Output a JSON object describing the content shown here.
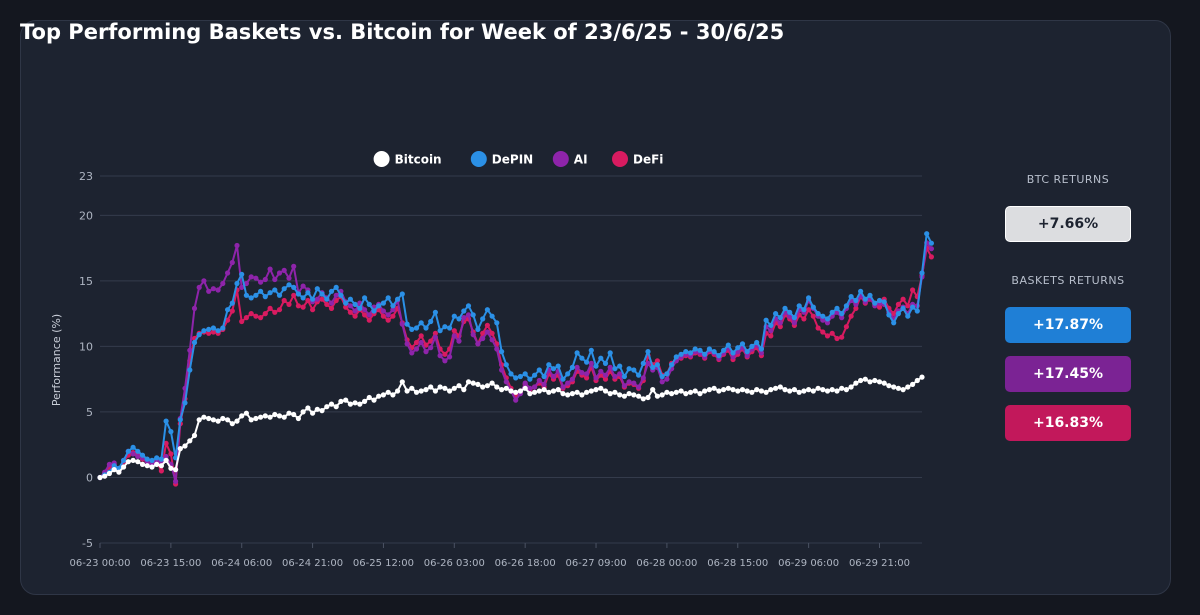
{
  "title": "Top Performing Baskets vs. Bitcoin for Week of 23/6/25 - 30/6/25",
  "side_panel": {
    "btc_heading": "BTC RETURNS",
    "btc_return": "+7.66%",
    "baskets_heading": "BASKETS RETURNS",
    "basket_returns": [
      {
        "series": "DePIN",
        "value": "+17.87%"
      },
      {
        "series": "AI",
        "value": "+17.45%"
      },
      {
        "series": "DeFi",
        "value": "+16.83%"
      }
    ]
  },
  "colors": {
    "Bitcoin": "#ffffff",
    "DePIN": "#2b90e6",
    "AI": "#8e24aa",
    "DeFi": "#d81b60",
    "btc_box": "#dcdde0",
    "depin_box": "#1f7fd6",
    "ai_box": "#7b2394",
    "defi_box": "#c2185b"
  },
  "chart_data": {
    "type": "line",
    "title": "Top Performing Baskets vs. Bitcoin for Week of 23/6/25 - 30/6/25",
    "xlabel": "",
    "ylabel": "Performance (%)",
    "ylim": [
      -5,
      23
    ],
    "yticks": [
      -5,
      0,
      5,
      10,
      15,
      20,
      23
    ],
    "x_start": "06-23 00:00",
    "x_interval_hours": 1,
    "xtick_labels": [
      "06-23 00:00",
      "06-23 15:00",
      "06-24 06:00",
      "06-24 21:00",
      "06-25 12:00",
      "06-26 03:00",
      "06-26 18:00",
      "06-27 09:00",
      "06-28 00:00",
      "06-28 15:00",
      "06-29 06:00",
      "06-29 21:00"
    ],
    "legend": "top-center",
    "grid": true,
    "series": [
      {
        "name": "Bitcoin",
        "values": [
          0.0,
          0.1,
          0.3,
          0.6,
          0.4,
          0.8,
          1.2,
          1.3,
          1.2,
          1.0,
          0.9,
          0.8,
          1.0,
          0.9,
          1.3,
          0.7,
          0.6,
          2.2,
          2.4,
          2.8,
          3.2,
          4.4,
          4.6,
          4.5,
          4.4,
          4.3,
          4.5,
          4.4,
          4.1,
          4.3,
          4.7,
          4.9,
          4.4,
          4.5,
          4.6,
          4.7,
          4.6,
          4.8,
          4.7,
          4.6,
          4.9,
          4.8,
          4.5,
          5.0,
          5.3,
          4.9,
          5.2,
          5.1,
          5.4,
          5.6,
          5.4,
          5.8,
          5.9,
          5.6,
          5.7,
          5.6,
          5.8,
          6.1,
          5.9,
          6.2,
          6.3,
          6.5,
          6.3,
          6.6,
          7.3,
          6.6,
          6.8,
          6.5,
          6.6,
          6.7,
          6.9,
          6.6,
          6.9,
          6.8,
          6.6,
          6.8,
          7.0,
          6.7,
          7.3,
          7.2,
          7.1,
          6.9,
          7.0,
          7.2,
          6.9,
          6.7,
          6.8,
          6.6,
          6.5,
          6.6,
          6.8,
          6.4,
          6.5,
          6.6,
          6.7,
          6.5,
          6.6,
          6.7,
          6.4,
          6.3,
          6.4,
          6.5,
          6.3,
          6.5,
          6.6,
          6.7,
          6.8,
          6.6,
          6.4,
          6.5,
          6.3,
          6.2,
          6.4,
          6.3,
          6.2,
          6.0,
          6.1,
          6.7,
          6.2,
          6.3,
          6.5,
          6.4,
          6.5,
          6.6,
          6.4,
          6.5,
          6.6,
          6.4,
          6.6,
          6.7,
          6.8,
          6.6,
          6.7,
          6.8,
          6.7,
          6.6,
          6.7,
          6.6,
          6.5,
          6.7,
          6.6,
          6.5,
          6.7,
          6.8,
          6.9,
          6.7,
          6.6,
          6.7,
          6.5,
          6.6,
          6.7,
          6.6,
          6.8,
          6.7,
          6.6,
          6.7,
          6.6,
          6.8,
          6.7,
          6.9,
          7.2,
          7.4,
          7.5,
          7.3,
          7.4,
          7.3,
          7.2,
          7.0,
          6.9,
          6.8,
          6.7,
          6.9,
          7.1,
          7.4,
          7.66
        ]
      },
      {
        "name": "DePIN",
        "values": [
          0.0,
          0.2,
          0.4,
          0.9,
          0.7,
          1.3,
          2.0,
          2.3,
          2.0,
          1.7,
          1.4,
          1.3,
          1.5,
          1.4,
          4.3,
          3.5,
          1.5,
          4.4,
          5.7,
          8.2,
          10.3,
          10.9,
          11.2,
          11.3,
          11.4,
          11.2,
          11.4,
          12.8,
          13.3,
          14.8,
          15.5,
          13.9,
          13.7,
          13.9,
          14.2,
          13.8,
          14.1,
          14.3,
          13.9,
          14.4,
          14.7,
          14.5,
          14.0,
          13.7,
          14.1,
          13.6,
          14.4,
          14.0,
          13.6,
          14.2,
          14.5,
          13.9,
          13.3,
          13.6,
          13.2,
          12.9,
          13.7,
          13.2,
          12.7,
          13.1,
          13.3,
          13.7,
          13.1,
          13.6,
          14.0,
          11.7,
          11.3,
          11.4,
          11.8,
          11.4,
          11.9,
          12.6,
          11.2,
          11.5,
          11.4,
          12.3,
          12.1,
          12.7,
          13.1,
          12.4,
          11.3,
          12.1,
          12.8,
          12.3,
          11.8,
          9.6,
          8.6,
          7.9,
          7.6,
          7.7,
          7.9,
          7.5,
          7.8,
          8.2,
          7.7,
          8.6,
          8.3,
          8.5,
          7.5,
          7.9,
          8.4,
          9.5,
          9.1,
          8.8,
          9.7,
          8.5,
          9.1,
          8.7,
          9.5,
          8.3,
          8.5,
          7.7,
          8.3,
          8.2,
          7.8,
          8.7,
          9.6,
          8.4,
          8.6,
          7.7,
          7.9,
          8.6,
          9.2,
          9.4,
          9.6,
          9.5,
          9.8,
          9.7,
          9.4,
          9.8,
          9.6,
          9.3,
          9.7,
          10.1,
          9.5,
          9.9,
          10.2,
          9.6,
          10.0,
          10.3,
          9.8,
          12.0,
          11.6,
          12.5,
          12.2,
          12.9,
          12.6,
          12.2,
          13.1,
          12.8,
          13.7,
          13.0,
          12.5,
          12.3,
          12.1,
          12.6,
          12.9,
          12.5,
          13.1,
          13.8,
          13.5,
          14.2,
          13.6,
          13.9,
          13.3,
          13.5,
          13.4,
          12.4,
          11.8,
          12.5,
          12.9,
          12.3,
          13.0,
          12.7,
          15.6,
          18.6,
          17.87
        ]
      },
      {
        "name": "AI",
        "values": [
          0.0,
          0.4,
          1.0,
          1.1,
          0.5,
          1.3,
          2.0,
          1.8,
          1.6,
          1.5,
          1.2,
          1.0,
          1.3,
          1.1,
          1.6,
          1.0,
          -0.3,
          4.5,
          6.8,
          9.7,
          12.9,
          14.5,
          15.0,
          14.2,
          14.4,
          14.3,
          14.8,
          15.6,
          16.4,
          17.7,
          14.5,
          14.8,
          15.3,
          15.2,
          14.9,
          15.1,
          15.9,
          15.1,
          15.6,
          15.8,
          15.2,
          16.1,
          14.1,
          14.6,
          14.3,
          13.4,
          13.6,
          14.1,
          13.7,
          13.3,
          13.9,
          14.2,
          13.4,
          13.1,
          12.7,
          13.3,
          12.8,
          12.4,
          13.0,
          13.2,
          12.7,
          12.4,
          12.8,
          13.5,
          11.7,
          10.2,
          9.5,
          9.8,
          10.3,
          9.6,
          9.9,
          10.7,
          9.3,
          8.9,
          9.2,
          10.8,
          10.4,
          12.2,
          12.4,
          10.9,
          10.2,
          10.6,
          11.1,
          10.5,
          9.8,
          8.2,
          7.3,
          6.6,
          5.9,
          6.4,
          7.2,
          6.8,
          6.9,
          7.4,
          7.1,
          8.2,
          7.7,
          8.1,
          6.9,
          7.2,
          7.5,
          8.4,
          8.0,
          7.9,
          8.7,
          7.6,
          8.1,
          7.8,
          8.4,
          7.7,
          7.9,
          7.0,
          7.3,
          7.2,
          6.9,
          7.6,
          8.7,
          8.2,
          8.4,
          7.3,
          7.5,
          8.3,
          8.9,
          9.2,
          9.4,
          9.3,
          9.6,
          9.5,
          9.2,
          9.7,
          9.5,
          9.1,
          9.5,
          9.9,
          9.2,
          9.6,
          9.9,
          9.3,
          9.8,
          10.1,
          9.5,
          11.5,
          11.2,
          12.1,
          11.8,
          12.6,
          12.3,
          11.8,
          12.8,
          12.6,
          13.5,
          12.9,
          12.3,
          12.0,
          11.8,
          12.3,
          12.6,
          12.2,
          12.9,
          13.5,
          13.2,
          13.9,
          13.4,
          13.7,
          13.1,
          13.3,
          13.2,
          12.6,
          12.1,
          12.7,
          13.0,
          12.5,
          13.2,
          13.1,
          15.3,
          17.9,
          17.45
        ]
      },
      {
        "name": "DeFi",
        "values": [
          0.0,
          0.3,
          0.8,
          1.0,
          0.6,
          1.2,
          1.7,
          1.9,
          1.7,
          1.4,
          1.2,
          1.0,
          1.2,
          0.5,
          2.6,
          1.8,
          -0.5,
          4.1,
          6.0,
          8.9,
          10.6,
          11.0,
          11.1,
          11.0,
          11.1,
          11.0,
          11.3,
          12.0,
          12.7,
          14.3,
          11.9,
          12.2,
          12.5,
          12.3,
          12.2,
          12.5,
          12.9,
          12.6,
          12.8,
          13.5,
          13.2,
          13.9,
          13.1,
          13.0,
          13.5,
          12.8,
          13.4,
          13.6,
          13.2,
          12.9,
          13.5,
          13.8,
          13.0,
          12.6,
          12.3,
          12.8,
          12.4,
          12.0,
          12.5,
          12.8,
          12.3,
          12.0,
          12.3,
          12.9,
          11.8,
          10.5,
          9.9,
          10.3,
          10.8,
          10.1,
          10.4,
          11.0,
          9.8,
          9.4,
          9.8,
          11.2,
          10.8,
          11.9,
          12.1,
          11.1,
          10.2,
          11.0,
          11.6,
          11.0,
          10.2,
          8.6,
          7.6,
          6.8,
          6.2,
          6.5,
          7.1,
          6.7,
          6.9,
          7.2,
          6.9,
          7.9,
          7.5,
          7.8,
          6.8,
          7.0,
          7.3,
          8.1,
          7.8,
          7.6,
          8.4,
          7.4,
          7.8,
          7.5,
          8.1,
          7.5,
          7.7,
          6.9,
          7.2,
          7.1,
          6.8,
          7.4,
          9.3,
          8.6,
          8.9,
          7.8,
          7.9,
          8.7,
          9.0,
          9.1,
          9.3,
          9.2,
          9.5,
          9.4,
          9.1,
          9.6,
          9.4,
          9.0,
          9.4,
          9.7,
          9.0,
          9.4,
          9.8,
          9.2,
          9.6,
          9.9,
          9.3,
          11.0,
          10.8,
          11.8,
          11.5,
          12.4,
          12.1,
          11.6,
          12.4,
          12.1,
          12.8,
          12.3,
          11.4,
          11.1,
          10.8,
          11.0,
          10.6,
          10.7,
          11.5,
          12.3,
          12.9,
          13.8,
          13.3,
          13.6,
          13.2,
          13.0,
          13.6,
          12.9,
          12.5,
          13.2,
          13.6,
          13.1,
          14.3,
          13.8,
          15.4,
          17.5,
          16.83
        ]
      }
    ]
  }
}
